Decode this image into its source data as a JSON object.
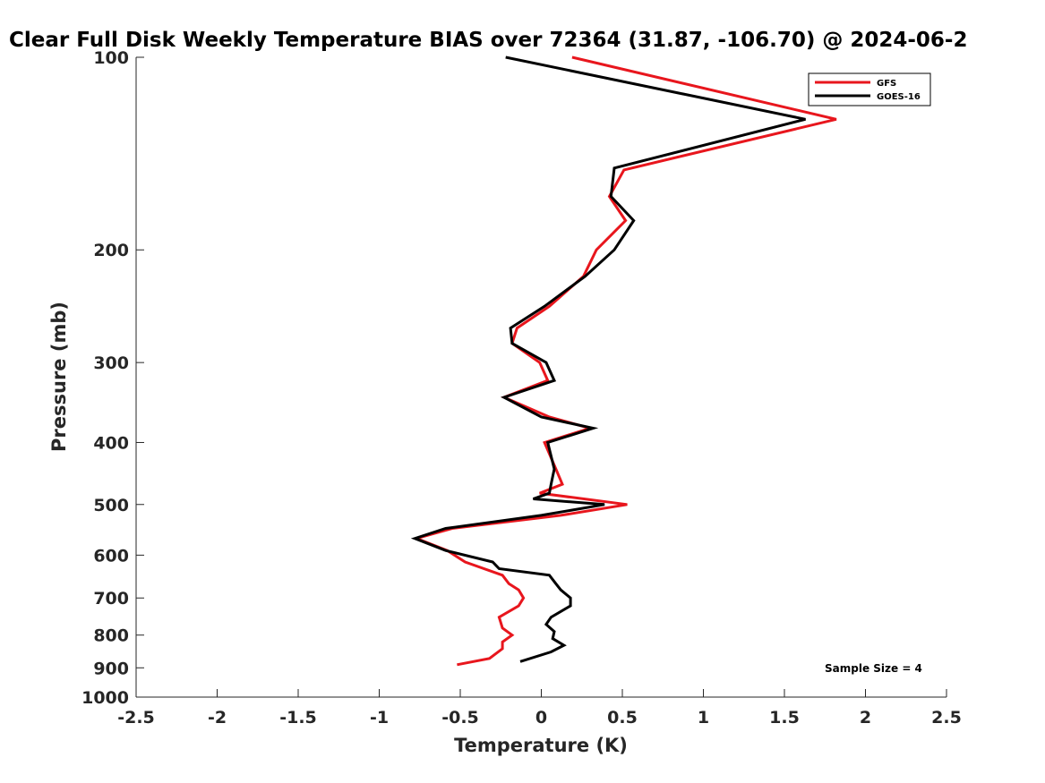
{
  "chart_data": {
    "type": "line",
    "title": "Clear Full Disk Weekly Temperature BIAS over 72364 (31.87, -106.70) @ 2024-06-2",
    "xlabel": "Temperature (K)",
    "ylabel": "Pressure (mb)",
    "xlim": [
      -2.5,
      2.5
    ],
    "ylim": [
      100,
      1000
    ],
    "y_scale": "log",
    "y_reversed": true,
    "grid": false,
    "legend_position": "top-right",
    "x_ticks": [
      "-2.5",
      "-2",
      "-1.5",
      "-1",
      "-0.5",
      "0",
      "0.5",
      "1",
      "1.5",
      "2",
      "2.5"
    ],
    "y_ticks": [
      "100",
      "200",
      "300",
      "400",
      "500",
      "600",
      "700",
      "800",
      "900",
      "1000"
    ],
    "series": [
      {
        "name": "GFS",
        "color": "#e8161d",
        "points": [
          [
            0.19,
            100
          ],
          [
            1.82,
            125
          ],
          [
            0.51,
            150
          ],
          [
            0.42,
            165
          ],
          [
            0.52,
            180
          ],
          [
            0.34,
            200
          ],
          [
            0.26,
            220
          ],
          [
            0.05,
            245
          ],
          [
            -0.15,
            265
          ],
          [
            -0.18,
            280
          ],
          [
            -0.01,
            300
          ],
          [
            0.04,
            320
          ],
          [
            -0.23,
            340
          ],
          [
            0.05,
            365
          ],
          [
            0.3,
            380
          ],
          [
            0.02,
            400
          ],
          [
            0.09,
            440
          ],
          [
            0.13,
            465
          ],
          [
            -0.01,
            480
          ],
          [
            0.53,
            500
          ],
          [
            0.12,
            520
          ],
          [
            -0.55,
            545
          ],
          [
            -0.77,
            565
          ],
          [
            -0.58,
            590
          ],
          [
            -0.47,
            615
          ],
          [
            -0.24,
            645
          ],
          [
            -0.2,
            665
          ],
          [
            -0.14,
            680
          ],
          [
            -0.11,
            700
          ],
          [
            -0.14,
            720
          ],
          [
            -0.26,
            750
          ],
          [
            -0.24,
            780
          ],
          [
            -0.18,
            800
          ],
          [
            -0.24,
            820
          ],
          [
            -0.24,
            840
          ],
          [
            -0.32,
            870
          ],
          [
            -0.52,
            890
          ]
        ]
      },
      {
        "name": "GOES-16",
        "color": "#000000",
        "points": [
          [
            -0.22,
            100
          ],
          [
            1.63,
            125
          ],
          [
            0.45,
            149
          ],
          [
            0.43,
            165
          ],
          [
            0.57,
            180
          ],
          [
            0.45,
            200
          ],
          [
            0.27,
            220
          ],
          [
            0.02,
            245
          ],
          [
            -0.19,
            265
          ],
          [
            -0.18,
            280
          ],
          [
            0.03,
            300
          ],
          [
            0.08,
            320
          ],
          [
            -0.23,
            340
          ],
          [
            0.0,
            365
          ],
          [
            0.32,
            380
          ],
          [
            0.04,
            400
          ],
          [
            0.08,
            440
          ],
          [
            0.06,
            465
          ],
          [
            0.05,
            480
          ],
          [
            -0.05,
            490
          ],
          [
            0.39,
            500
          ],
          [
            0.0,
            520
          ],
          [
            -0.59,
            545
          ],
          [
            -0.78,
            565
          ],
          [
            -0.59,
            590
          ],
          [
            -0.3,
            615
          ],
          [
            -0.26,
            630
          ],
          [
            0.05,
            645
          ],
          [
            0.09,
            665
          ],
          [
            0.12,
            680
          ],
          [
            0.18,
            700
          ],
          [
            0.18,
            720
          ],
          [
            0.06,
            750
          ],
          [
            0.03,
            770
          ],
          [
            0.08,
            790
          ],
          [
            0.07,
            810
          ],
          [
            0.14,
            830
          ],
          [
            0.06,
            850
          ],
          [
            -0.13,
            880
          ]
        ]
      }
    ],
    "annotations": [
      {
        "text": "Sample Size = 4",
        "position": "bottom-right"
      }
    ]
  }
}
